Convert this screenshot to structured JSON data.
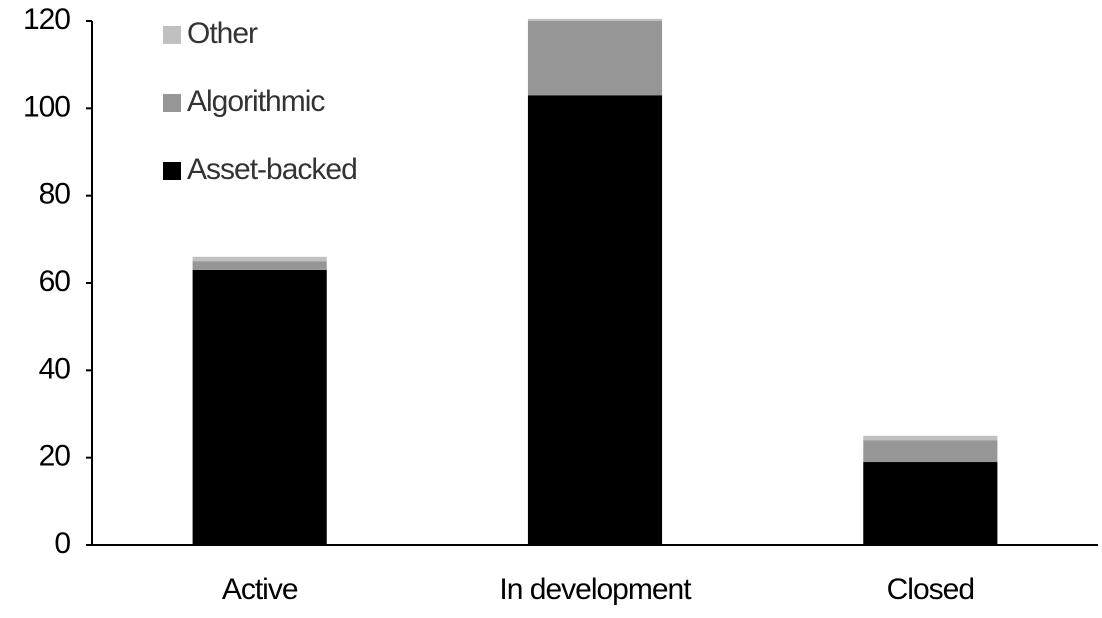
{
  "chart_data": {
    "type": "stacked_bar",
    "categories": [
      "Active",
      "In development",
      "Closed"
    ],
    "series": [
      {
        "name": "Asset-backed",
        "color": "#000000",
        "values": [
          63,
          103,
          19
        ]
      },
      {
        "name": "Algorithmic",
        "color": "#969696",
        "values": [
          2,
          17,
          5
        ]
      },
      {
        "name": "Other",
        "color": "#c0c0c0",
        "values": [
          1,
          0.5,
          1
        ]
      }
    ],
    "ylim": [
      0,
      120
    ],
    "yticks": [
      0,
      20,
      40,
      60,
      80,
      100,
      120
    ],
    "grid": false,
    "legend": "upper left"
  }
}
